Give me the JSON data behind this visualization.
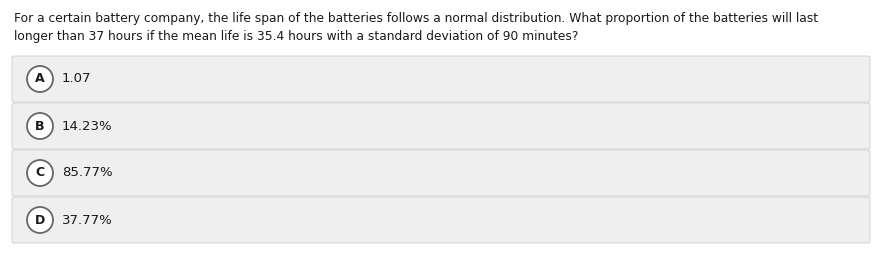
{
  "question_line1": "For a certain battery company, the life span of the batteries follows a normal distribution. What proportion of the batteries will last",
  "question_line2": "longer than 37 hours if the mean life is 35.4 hours with a standard deviation of 90 minutes?",
  "options": [
    {
      "label": "A",
      "text": "1.07"
    },
    {
      "label": "B",
      "text": "14.23%"
    },
    {
      "label": "C",
      "text": "85.77%"
    },
    {
      "label": "D",
      "text": "37.77%"
    }
  ],
  "bg_color": "#ffffff",
  "option_bg_color": "#efefef",
  "option_border_color": "#cccccc",
  "text_color": "#1a1a1a",
  "circle_edge_color": "#666666",
  "circle_face_color": "#ffffff",
  "question_fontsize": 8.8,
  "option_fontsize": 9.5,
  "label_fontsize": 9.0
}
